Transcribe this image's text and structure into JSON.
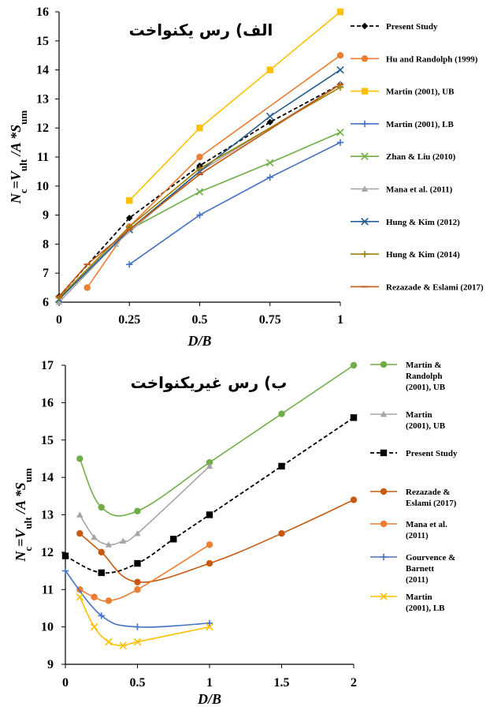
{
  "chart_data": [
    {
      "type": "line",
      "title": "الف) رس یکنواخت",
      "xlabel": "D/B",
      "ylabel": "Nc=Vult/A*Sum",
      "xlim": [
        0,
        1
      ],
      "ylim": [
        6,
        16
      ],
      "xticks": [
        0,
        0.25,
        0.5,
        0.75,
        1
      ],
      "xtick_labels": [
        "0",
        "0.25",
        "0.5",
        "0.75",
        "1"
      ],
      "yticks": [
        6,
        7,
        8,
        9,
        10,
        11,
        12,
        13,
        14,
        15,
        16
      ],
      "legend_position": "right",
      "series": [
        {
          "name": "Present Study",
          "color": "#000000",
          "dashed": true,
          "marker": "diamond",
          "x": [
            0,
            0.25,
            0.5,
            0.75,
            1
          ],
          "y": [
            6.2,
            8.9,
            10.7,
            12.2,
            13.5
          ]
        },
        {
          "name": "Hu and Randolph (1999)",
          "color": "#ED7D31",
          "marker": "circle",
          "x": [
            0.1,
            0.25,
            0.5,
            1
          ],
          "y": [
            6.5,
            8.6,
            11.0,
            14.5
          ]
        },
        {
          "name": "Martin (2001), UB",
          "color": "#FFC000",
          "marker": "square",
          "x": [
            0.25,
            0.5,
            0.75,
            1
          ],
          "y": [
            9.5,
            12.0,
            14.0,
            16.0
          ]
        },
        {
          "name": "Martin (2001), LB",
          "color": "#4472C4",
          "marker": "plus",
          "x": [
            0.25,
            0.5,
            0.75,
            1
          ],
          "y": [
            7.3,
            9.0,
            10.3,
            11.5
          ]
        },
        {
          "name": "Zhan & Liu (2010)",
          "color": "#70AD47",
          "marker": "x",
          "x": [
            0,
            0.25,
            0.5,
            0.75,
            1
          ],
          "y": [
            6.1,
            8.5,
            9.8,
            10.8,
            11.85
          ]
        },
        {
          "name": "Mana et al. (2011)",
          "color": "#A5A5A5",
          "marker": "triangle",
          "x": [
            0,
            0.2,
            0.5,
            1
          ],
          "y": [
            6.0,
            8.0,
            10.5,
            13.5
          ]
        },
        {
          "name": "Hung & Kim (2012)",
          "color": "#255E91",
          "marker": "x",
          "x": [
            0,
            0.25,
            0.5,
            0.75,
            1
          ],
          "y": [
            6.1,
            8.5,
            10.5,
            12.4,
            14.0
          ]
        },
        {
          "name": "Hung & Kim (2014)",
          "color": "#9E8000",
          "marker": "plus",
          "x": [
            0,
            0.25,
            0.5,
            1
          ],
          "y": [
            6.15,
            8.6,
            10.6,
            13.4
          ]
        },
        {
          "name": "Rezazade & Eslami (2017)",
          "color": "#C55A11",
          "marker": "dash",
          "x": [
            0,
            0.1,
            0.25,
            0.5,
            1
          ],
          "y": [
            6.2,
            7.3,
            8.5,
            10.4,
            13.5
          ]
        }
      ]
    },
    {
      "type": "line",
      "title": "ب) رس غیریکنواخت",
      "xlabel": "D/B",
      "ylabel": "Nc=Vult/A*Sum",
      "xlim": [
        0,
        2
      ],
      "ylim": [
        9,
        17
      ],
      "xticks": [
        0,
        0.5,
        1,
        1.5,
        2
      ],
      "xtick_labels": [
        "0",
        "0.5",
        "1",
        "1.5",
        "2"
      ],
      "yticks": [
        9,
        10,
        11,
        12,
        13,
        14,
        15,
        16,
        17
      ],
      "legend_position": "right",
      "series": [
        {
          "name": "Martin & Randolph (2001), UB",
          "color": "#70AD47",
          "marker": "circle",
          "x": [
            0.1,
            0.25,
            0.5,
            1,
            1.5,
            2
          ],
          "y": [
            14.5,
            13.2,
            13.1,
            14.4,
            15.7,
            17.0
          ]
        },
        {
          "name": "Martin (2001), UB",
          "color": "#A5A5A5",
          "marker": "triangle",
          "x": [
            0.1,
            0.2,
            0.3,
            0.4,
            0.5,
            1
          ],
          "y": [
            13.0,
            12.4,
            12.2,
            12.3,
            12.5,
            14.3
          ]
        },
        {
          "name": "Present Study",
          "color": "#000000",
          "dashed": true,
          "marker": "square",
          "x": [
            0,
            0.25,
            0.5,
            0.75,
            1,
            1.5,
            2
          ],
          "y": [
            11.9,
            11.45,
            11.7,
            12.35,
            13.0,
            14.3,
            15.6
          ]
        },
        {
          "name": "Rezazade & Eslami (2017)",
          "color": "#C55A11",
          "marker": "circle",
          "x": [
            0.1,
            0.25,
            0.5,
            1,
            1.5,
            2
          ],
          "y": [
            12.5,
            12.0,
            11.2,
            11.7,
            12.5,
            13.4
          ]
        },
        {
          "name": "Mana et al. (2011)",
          "color": "#ED7D31",
          "marker": "circle",
          "x": [
            0.1,
            0.2,
            0.3,
            0.5,
            1
          ],
          "y": [
            11.0,
            10.8,
            10.7,
            11.0,
            12.2
          ]
        },
        {
          "name": "Gourvence & Barnett (2011)",
          "color": "#4472C4",
          "marker": "plus",
          "x": [
            0,
            0.25,
            0.5,
            1
          ],
          "y": [
            11.5,
            10.3,
            10.0,
            10.1
          ]
        },
        {
          "name": "Martin (2001), LB",
          "color": "#FFC000",
          "marker": "x",
          "x": [
            0.1,
            0.2,
            0.3,
            0.4,
            0.5,
            1
          ],
          "y": [
            10.8,
            10.0,
            9.6,
            9.5,
            9.6,
            10.0
          ]
        }
      ]
    }
  ]
}
